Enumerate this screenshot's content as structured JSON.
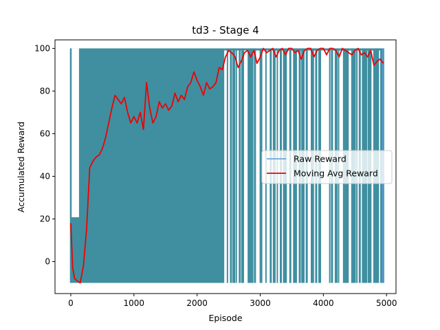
{
  "chart_data": {
    "type": "line",
    "title": "td3 - Stage 4",
    "xlabel": "Episode",
    "ylabel": "Accumulated Reward",
    "xlim": [
      -250,
      5150
    ],
    "ylim": [
      -15,
      104
    ],
    "x_ticks": [
      0,
      1000,
      2000,
      3000,
      4000,
      5000
    ],
    "y_ticks": [
      0,
      20,
      40,
      60,
      80,
      100
    ],
    "grid": false,
    "legend_position": "center-right",
    "raw_reward": {
      "name": "Raw Reward",
      "color": "#5b9bd5",
      "fill_color": "#3f8fa0",
      "x_range": [
        0,
        4950
      ],
      "min": -10,
      "max": 100,
      "description_values": {
        "low": -10,
        "high": 100
      }
    },
    "series": [
      {
        "name": "Moving Avg Reward",
        "color": "#ee0000",
        "x": [
          0,
          30,
          60,
          100,
          150,
          200,
          250,
          300,
          350,
          400,
          450,
          500,
          550,
          600,
          650,
          700,
          750,
          800,
          850,
          900,
          950,
          1000,
          1050,
          1100,
          1150,
          1200,
          1250,
          1300,
          1350,
          1400,
          1450,
          1500,
          1550,
          1600,
          1650,
          1700,
          1750,
          1800,
          1850,
          1900,
          1950,
          2000,
          2050,
          2100,
          2150,
          2200,
          2250,
          2300,
          2350,
          2400,
          2450,
          2500,
          2550,
          2600,
          2650,
          2700,
          2750,
          2800,
          2850,
          2900,
          2950,
          3000,
          3050,
          3100,
          3150,
          3200,
          3250,
          3300,
          3350,
          3400,
          3450,
          3500,
          3550,
          3600,
          3650,
          3700,
          3750,
          3800,
          3850,
          3900,
          3950,
          4000,
          4050,
          4100,
          4150,
          4200,
          4250,
          4300,
          4350,
          4400,
          4450,
          4500,
          4550,
          4600,
          4650,
          4700,
          4750,
          4800,
          4850,
          4900,
          4950
        ],
        "values": [
          18,
          -3,
          -8,
          -9,
          -10,
          -2,
          15,
          44,
          47,
          49,
          50,
          53,
          58,
          65,
          72,
          78,
          76,
          74,
          77,
          70,
          65,
          68,
          65,
          70,
          62,
          84,
          72,
          65,
          68,
          75,
          72,
          74,
          71,
          73,
          79,
          75,
          78,
          76,
          82,
          84,
          89,
          85,
          82,
          78,
          84,
          81,
          82,
          84,
          91,
          90,
          96,
          99,
          98,
          96,
          91,
          94,
          98,
          99,
          96,
          99,
          93,
          96,
          100,
          98,
          99,
          100,
          96,
          99,
          100,
          97,
          100,
          100,
          98,
          99,
          95,
          99,
          100,
          100,
          96,
          99,
          100,
          100,
          97,
          100,
          100,
          99,
          96,
          100,
          99,
          98,
          97,
          99,
          100,
          97,
          98,
          96,
          99,
          92,
          94,
          95,
          93
        ]
      }
    ]
  }
}
